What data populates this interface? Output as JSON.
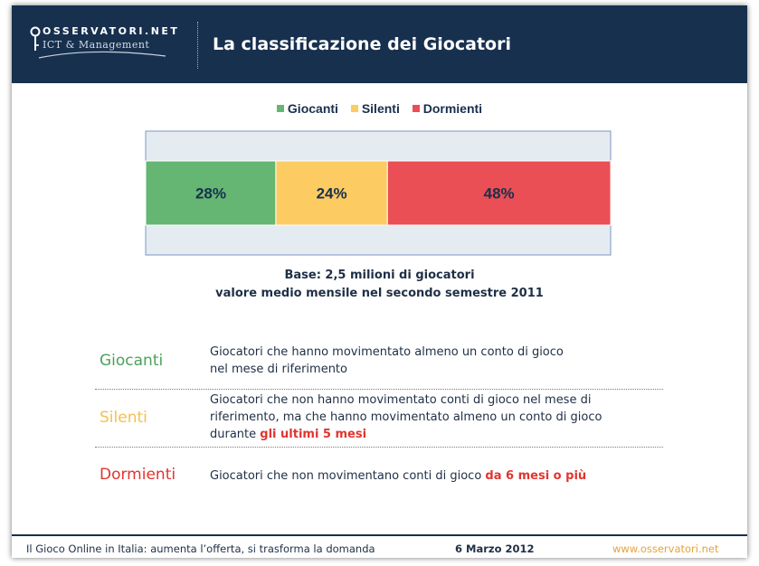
{
  "header": {
    "logo_top": "OSSERVATORI.NET",
    "logo_bottom": "ICT & Management",
    "title": "La classificazione dei Giocatori"
  },
  "chart_data": {
    "type": "bar",
    "stacked": true,
    "orientation": "horizontal",
    "legend_position": "top",
    "xlim": [
      0,
      100
    ],
    "series": [
      {
        "name": "Giocanti",
        "values": [
          28
        ],
        "label": "28%",
        "color": "#65b672"
      },
      {
        "name": "Silenti",
        "values": [
          24
        ],
        "label": "24%",
        "color": "#fccb62"
      },
      {
        "name": "Dormienti",
        "values": [
          48
        ],
        "label": "48%",
        "color": "#ea4f55"
      }
    ]
  },
  "base_note": {
    "line1": "Base: 2,5 milioni di giocatori",
    "line2": "valore medio mensile nel secondo semestre 2011"
  },
  "definitions": [
    {
      "label": "Giocanti",
      "color": "#4aa35a",
      "line1": "Giocatori che hanno movimentato almeno un conto di gioco",
      "line2": "nel mese di riferimento"
    },
    {
      "label": "Silenti",
      "color": "#f6c04c",
      "line1": "Giocatori che non hanno movimentato conti di gioco nel mese di",
      "line2": "riferimento, ma che hanno movimentato almeno un conto di gioco",
      "line3_prefix": "durante ",
      "line3_highlight": "gli ultimi 5 mesi"
    },
    {
      "label": "Dormienti",
      "color": "#e0352f",
      "line1_prefix": "Giocatori che non movimentano conti di gioco ",
      "line1_highlight": "da 6 mesi o più"
    }
  ],
  "footer": {
    "left": "Il Gioco Online in Italia: aumenta l’offerta, si trasforma la domanda",
    "date": "6 Marzo 2012",
    "url": "www.osservatori.net"
  }
}
